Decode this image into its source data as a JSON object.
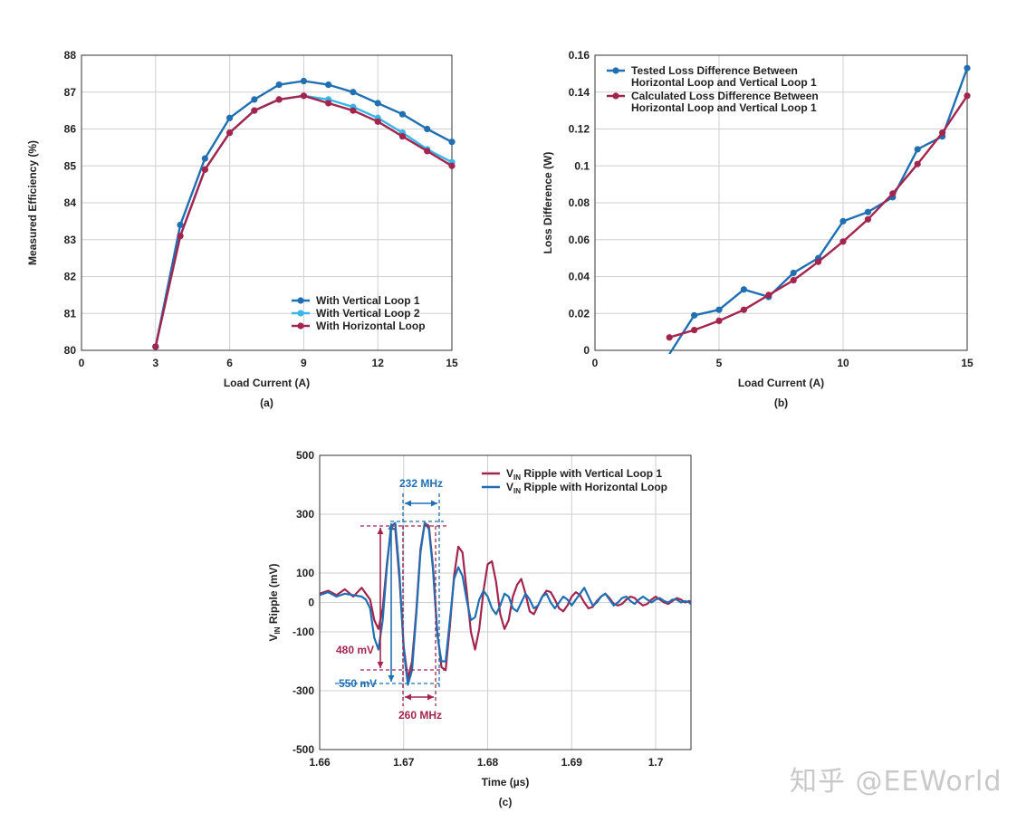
{
  "watermark": "知乎 @EEWorld",
  "chart_data": [
    {
      "id": "a",
      "type": "line",
      "caption": "(a)",
      "xlabel": "Load Current (A)",
      "ylabel": "Measured Efficiency (%)",
      "xlim": [
        0,
        15
      ],
      "ylim": [
        80,
        88
      ],
      "xticks": [
        0,
        3,
        6,
        9,
        12,
        15
      ],
      "yticks": [
        80,
        81,
        82,
        83,
        84,
        85,
        86,
        87,
        88
      ],
      "legend_position": "bottom-right",
      "series": [
        {
          "name": "With Vertical Loop 1",
          "color": "#1f6fb2",
          "x": [
            3,
            4,
            5,
            6,
            7,
            8,
            9,
            10,
            11,
            12,
            13,
            14,
            15
          ],
          "y": [
            80.1,
            83.4,
            85.2,
            86.3,
            86.8,
            87.2,
            87.3,
            87.2,
            87.0,
            86.7,
            86.4,
            86.0,
            85.65
          ]
        },
        {
          "name": "With Vertical Loop 2",
          "color": "#38b6e6",
          "x": [
            3,
            4,
            5,
            6,
            7,
            8,
            9,
            10,
            11,
            12,
            13,
            14,
            15
          ],
          "y": [
            80.1,
            83.1,
            84.9,
            85.9,
            86.5,
            86.8,
            86.9,
            86.8,
            86.6,
            86.3,
            85.9,
            85.45,
            85.1
          ]
        },
        {
          "name": "With Horizontal Loop",
          "color": "#a3254e",
          "x": [
            3,
            4,
            5,
            6,
            7,
            8,
            9,
            10,
            11,
            12,
            13,
            14,
            15
          ],
          "y": [
            80.1,
            83.1,
            84.9,
            85.9,
            86.5,
            86.8,
            86.9,
            86.7,
            86.5,
            86.2,
            85.8,
            85.4,
            85.0
          ]
        }
      ]
    },
    {
      "id": "b",
      "type": "line",
      "caption": "(b)",
      "xlabel": "Load Current (A)",
      "ylabel": "Loss Difference (W)",
      "xlim": [
        0,
        15
      ],
      "ylim": [
        0,
        0.16
      ],
      "xticks": [
        0,
        5,
        10,
        15
      ],
      "yticks": [
        0,
        0.02,
        0.04,
        0.06,
        0.08,
        0.1,
        0.12,
        0.14,
        0.16
      ],
      "ytick_labels": [
        "0",
        "0.02",
        "0.04",
        "0.06",
        "0.08",
        "0.1",
        "0.12",
        "0.14",
        "0.16"
      ],
      "legend_position": "top-left",
      "series": [
        {
          "name": "Tested Loss Difference Between Horizontal Loop and Vertical Loop 1",
          "legend_lines": [
            "Tested Loss Difference Between",
            "Horizontal Loop and Vertical Loop 1"
          ],
          "color": "#1f6fb2",
          "x": [
            3,
            4,
            5,
            6,
            7,
            8,
            9,
            10,
            11,
            12,
            13,
            14,
            15
          ],
          "y": [
            -0.002,
            0.019,
            0.022,
            0.033,
            0.029,
            0.042,
            0.05,
            0.07,
            0.075,
            0.083,
            0.109,
            0.116,
            0.153
          ]
        },
        {
          "name": "Calculated Loss Difference Between Horizontal Loop and Vertical Loop 1",
          "legend_lines": [
            "Calculated Loss Difference Between",
            "Horizontal Loop and Vertical Loop 1"
          ],
          "color": "#a3254e",
          "x": [
            3,
            4,
            5,
            6,
            7,
            8,
            9,
            10,
            11,
            12,
            13,
            14,
            15
          ],
          "y": [
            0.007,
            0.011,
            0.016,
            0.022,
            0.03,
            0.038,
            0.048,
            0.059,
            0.071,
            0.085,
            0.101,
            0.118,
            0.138
          ]
        }
      ]
    },
    {
      "id": "c",
      "type": "line",
      "caption": "(c)",
      "xlabel": "Time (µs)",
      "ylabel_main": "V",
      "ylabel_sub": "IN",
      "ylabel_rest": " Ripple (mV)",
      "xlim": [
        1.66,
        1.7042
      ],
      "ylim": [
        -500,
        500
      ],
      "xticks": [
        1.66,
        1.67,
        1.68,
        1.69,
        1.7
      ],
      "xtick_labels": [
        "1.66",
        "1.67",
        "1.68",
        "1.69",
        "1.7"
      ],
      "yticks": [
        -500,
        -300,
        -100,
        0,
        100,
        300,
        500
      ],
      "legend_position": "top-right",
      "series": [
        {
          "name": "VIN Ripple with Vertical Loop 1",
          "legend_main": "V",
          "legend_sub": "IN",
          "legend_rest": " Ripple with Vertical Loop 1",
          "color": "#a3254e",
          "x": [
            1.66,
            1.661,
            1.662,
            1.663,
            1.664,
            1.665,
            1.6655,
            1.666,
            1.6665,
            1.667,
            1.6675,
            1.668,
            1.6685,
            1.669,
            1.6695,
            1.67,
            1.6705,
            1.671,
            1.6715,
            1.672,
            1.6725,
            1.673,
            1.6735,
            1.674,
            1.6745,
            1.675,
            1.6755,
            1.676,
            1.6765,
            1.677,
            1.6775,
            1.678,
            1.6785,
            1.679,
            1.6795,
            1.68,
            1.6805,
            1.681,
            1.6815,
            1.682,
            1.6825,
            1.683,
            1.6835,
            1.684,
            1.6845,
            1.685,
            1.6855,
            1.686,
            1.6865,
            1.687,
            1.6875,
            1.688,
            1.6885,
            1.689,
            1.6895,
            1.69,
            1.6905,
            1.691,
            1.6915,
            1.692,
            1.6925,
            1.693,
            1.6935,
            1.694,
            1.6945,
            1.695,
            1.6955,
            1.696,
            1.6965,
            1.697,
            1.6975,
            1.698,
            1.6985,
            1.699,
            1.6995,
            1.7,
            1.7005,
            1.701,
            1.7015,
            1.702,
            1.7025,
            1.703,
            1.7035,
            1.704,
            1.7042
          ],
          "y": [
            30,
            40,
            25,
            45,
            20,
            50,
            30,
            10,
            -60,
            -90,
            -20,
            130,
            250,
            250,
            80,
            -150,
            -260,
            -200,
            -30,
            180,
            270,
            260,
            120,
            -100,
            -220,
            -230,
            -80,
            90,
            190,
            170,
            40,
            -100,
            -160,
            -90,
            40,
            130,
            140,
            70,
            -40,
            -90,
            -60,
            20,
            60,
            80,
            30,
            -30,
            -40,
            -10,
            20,
            40,
            35,
            10,
            -20,
            -30,
            -10,
            20,
            35,
            25,
            0,
            -20,
            -15,
            5,
            20,
            30,
            15,
            -5,
            -10,
            -5,
            10,
            20,
            15,
            0,
            -10,
            -5,
            10,
            20,
            10,
            0,
            -5,
            5,
            15,
            10,
            0,
            5,
            0
          ],
          "note": "approximate waveform"
        },
        {
          "name": "VIN Ripple with Horizontal Loop",
          "legend_main": "V",
          "legend_sub": "IN",
          "legend_rest": " Ripple with Horizontal Loop",
          "color": "#1f6fb2",
          "x": [
            1.66,
            1.661,
            1.662,
            1.663,
            1.664,
            1.665,
            1.6655,
            1.666,
            1.6665,
            1.667,
            1.6675,
            1.668,
            1.6685,
            1.669,
            1.6695,
            1.67,
            1.6705,
            1.671,
            1.6715,
            1.672,
            1.6725,
            1.673,
            1.6735,
            1.674,
            1.6745,
            1.675,
            1.6755,
            1.676,
            1.6765,
            1.677,
            1.6775,
            1.678,
            1.6785,
            1.679,
            1.6795,
            1.68,
            1.6805,
            1.681,
            1.6815,
            1.682,
            1.6825,
            1.683,
            1.6835,
            1.684,
            1.6845,
            1.685,
            1.6855,
            1.686,
            1.6865,
            1.687,
            1.6875,
            1.688,
            1.6885,
            1.689,
            1.6895,
            1.69,
            1.6905,
            1.691,
            1.6915,
            1.692,
            1.6925,
            1.693,
            1.6935,
            1.694,
            1.6945,
            1.695,
            1.6955,
            1.696,
            1.6965,
            1.697,
            1.6975,
            1.698,
            1.6985,
            1.699,
            1.6995,
            1.7,
            1.7005,
            1.701,
            1.7015,
            1.702,
            1.7025,
            1.703,
            1.7035,
            1.704,
            1.7042
          ],
          "y": [
            25,
            35,
            20,
            30,
            25,
            20,
            10,
            -20,
            -120,
            -160,
            -60,
            120,
            260,
            270,
            100,
            -160,
            -280,
            -230,
            -40,
            170,
            270,
            250,
            110,
            -110,
            -200,
            -200,
            -60,
            80,
            120,
            90,
            10,
            -60,
            -50,
            10,
            40,
            20,
            -20,
            -40,
            -10,
            30,
            20,
            -20,
            -30,
            0,
            30,
            10,
            -20,
            -10,
            20,
            30,
            0,
            -20,
            0,
            20,
            10,
            -10,
            10,
            30,
            50,
            20,
            -10,
            0,
            20,
            30,
            10,
            -10,
            0,
            15,
            20,
            5,
            -5,
            10,
            20,
            10,
            0,
            10,
            15,
            5,
            0,
            10,
            10,
            0,
            5,
            0,
            -5
          ],
          "note": "approximate waveform"
        }
      ],
      "annotations": {
        "freq_top": "232 MHz",
        "freq_bottom": "260 MHz",
        "amp_left_red": "480 mV",
        "amp_left_blue": "550 mV"
      }
    }
  ]
}
